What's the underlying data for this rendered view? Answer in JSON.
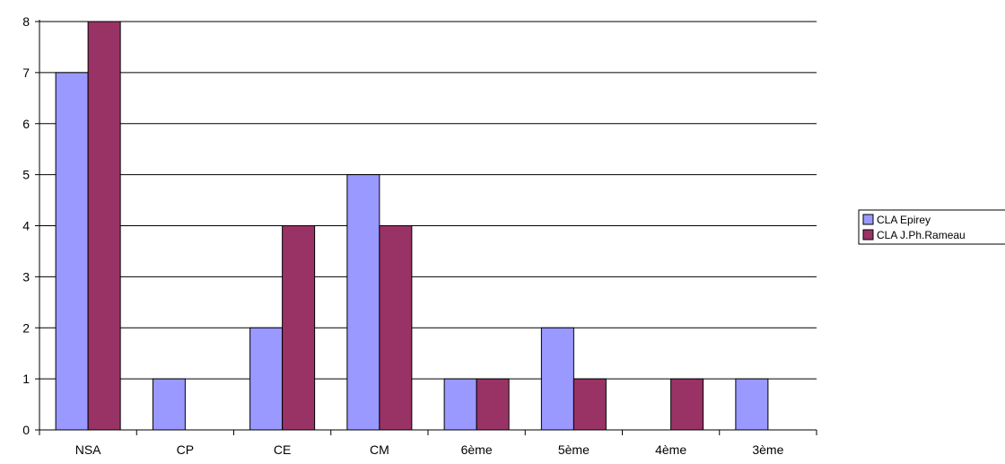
{
  "chart_data": {
    "type": "bar",
    "title": "",
    "xlabel": "",
    "ylabel": "",
    "categories": [
      "NSA",
      "CP",
      "CE",
      "CM",
      "6ème",
      "5ème",
      "4ème",
      "3ème"
    ],
    "series": [
      {
        "name": "CLA Epirey",
        "color": "#9999ff",
        "values": [
          7,
          1,
          2,
          5,
          1,
          2,
          0,
          1
        ]
      },
      {
        "name": "CLA J.Ph.Rameau",
        "color": "#993366",
        "values": [
          8,
          0,
          4,
          4,
          1,
          1,
          1,
          0
        ]
      }
    ],
    "ylim": [
      0,
      8
    ],
    "yticks": [
      0,
      1,
      2,
      3,
      4,
      5,
      6,
      7,
      8
    ],
    "grid": true,
    "legend_position": "right"
  }
}
